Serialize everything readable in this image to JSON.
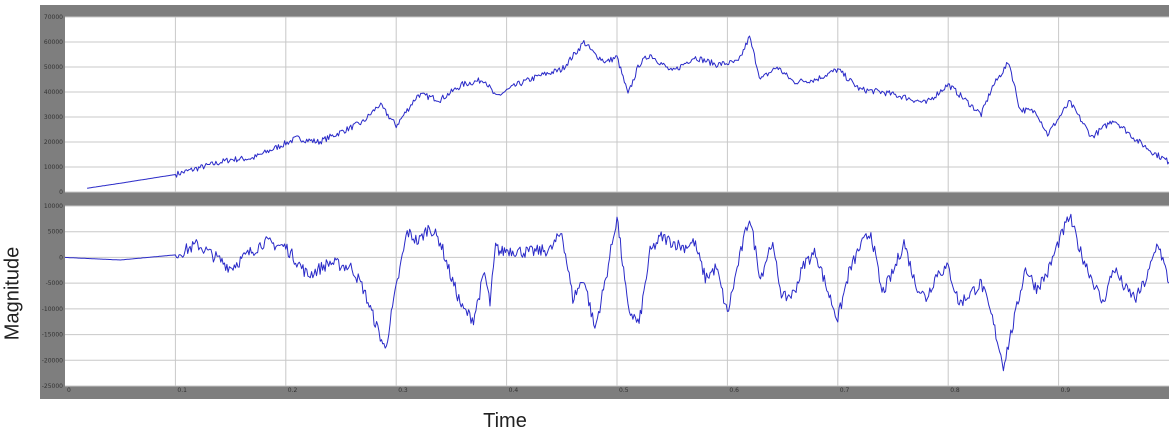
{
  "chart_data": [
    {
      "type": "line",
      "xlabel": "Time",
      "ylabel": "Magnitude",
      "xlim": [
        0,
        1
      ],
      "ylim": [
        0,
        70000
      ],
      "grid": true,
      "y_ticks": [
        "0",
        "10000",
        "20000",
        "30000",
        "40000",
        "50000",
        "60000",
        "70000"
      ],
      "x_ticks": [
        "0",
        "0.1",
        "0.2",
        "0.3",
        "0.4",
        "0.5",
        "0.6",
        "0.7",
        "0.8",
        "0.9"
      ],
      "series": [
        {
          "color": "#2a2ac8",
          "x": [
            0.02,
            0.05,
            0.1,
            0.12,
            0.15,
            0.17,
            0.19,
            0.21,
            0.23,
            0.25,
            0.27,
            0.285,
            0.3,
            0.32,
            0.34,
            0.36,
            0.38,
            0.39,
            0.41,
            0.43,
            0.45,
            0.465,
            0.47,
            0.48,
            0.49,
            0.5,
            0.51,
            0.52,
            0.53,
            0.55,
            0.57,
            0.59,
            0.61,
            0.62,
            0.63,
            0.645,
            0.66,
            0.68,
            0.7,
            0.72,
            0.74,
            0.76,
            0.78,
            0.8,
            0.81,
            0.83,
            0.84,
            0.855,
            0.865,
            0.88,
            0.89,
            0.91,
            0.93,
            0.95,
            0.97,
            0.985,
            1.0
          ],
          "y": [
            1500,
            3500,
            7000,
            9500,
            13000,
            13500,
            17500,
            21500,
            20000,
            24000,
            28000,
            35000,
            26500,
            39000,
            37000,
            43000,
            45000,
            38000,
            43000,
            46500,
            49000,
            57000,
            60000,
            55000,
            52000,
            54000,
            39000,
            51000,
            55000,
            48000,
            54000,
            51000,
            52000,
            62000,
            45000,
            50000,
            44000,
            45000,
            49000,
            41000,
            40000,
            38000,
            35500,
            43000,
            39000,
            31000,
            42000,
            52000,
            33000,
            32000,
            23000,
            36000,
            22000,
            29000,
            21000,
            16000,
            12000
          ]
        }
      ]
    },
    {
      "type": "line",
      "xlabel": "Time",
      "ylabel": "Magnitude",
      "xlim": [
        0,
        1
      ],
      "ylim": [
        -25000,
        10000
      ],
      "grid": true,
      "y_ticks": [
        "10000",
        "5000",
        "0",
        "-5000",
        "-10000",
        "-15000",
        "-20000",
        "-25000"
      ],
      "x_ticks": [
        "0",
        "0.1",
        "0.2",
        "0.3",
        "0.4",
        "0.5",
        "0.6",
        "0.7",
        "0.8",
        "0.9"
      ],
      "series": [
        {
          "color": "#2a2ac8",
          "x": [
            0.0,
            0.05,
            0.1,
            0.12,
            0.14,
            0.15,
            0.18,
            0.2,
            0.22,
            0.24,
            0.26,
            0.27,
            0.28,
            0.29,
            0.3,
            0.31,
            0.32,
            0.33,
            0.34,
            0.35,
            0.36,
            0.37,
            0.38,
            0.385,
            0.39,
            0.395,
            0.4,
            0.42,
            0.44,
            0.45,
            0.46,
            0.47,
            0.48,
            0.49,
            0.5,
            0.505,
            0.51,
            0.52,
            0.53,
            0.54,
            0.55,
            0.56,
            0.57,
            0.58,
            0.59,
            0.6,
            0.61,
            0.62,
            0.63,
            0.64,
            0.65,
            0.66,
            0.67,
            0.68,
            0.69,
            0.7,
            0.71,
            0.72,
            0.73,
            0.74,
            0.75,
            0.76,
            0.77,
            0.78,
            0.79,
            0.8,
            0.81,
            0.82,
            0.83,
            0.84,
            0.85,
            0.86,
            0.87,
            0.88,
            0.89,
            0.9,
            0.91,
            0.92,
            0.93,
            0.94,
            0.95,
            0.96,
            0.97,
            0.98,
            0.99,
            1.0
          ],
          "y": [
            0,
            -500,
            500,
            2500,
            -500,
            -2000,
            3000,
            2000,
            -3500,
            -1000,
            -2000,
            -6000,
            -12000,
            -18000,
            -6000,
            5000,
            3000,
            6000,
            3000,
            -4000,
            -10000,
            -12000,
            -3000,
            -9000,
            2000,
            1000,
            1500,
            1000,
            1500,
            5000,
            -8000,
            -4000,
            -14000,
            -4000,
            8000,
            -1000,
            -10000,
            -13000,
            1000,
            4000,
            3000,
            2000,
            3000,
            -4000,
            -2000,
            -11000,
            -1000,
            8000,
            -4000,
            3000,
            -8000,
            -7000,
            -1000,
            1000,
            -6000,
            -12000,
            -3000,
            2000,
            5000,
            -7000,
            -3000,
            3000,
            -5000,
            -8000,
            -3000,
            -2000,
            -9000,
            -7000,
            -5000,
            -12000,
            -21000,
            -12000,
            -2000,
            -6000,
            -3000,
            3000,
            8000,
            1000,
            -4000,
            -9000,
            -2000,
            -6000,
            -8000,
            -4000,
            3000,
            -5000
          ]
        }
      ]
    }
  ],
  "labels": {
    "xlabel": "Time",
    "ylabel": "Magnitude"
  },
  "colors": {
    "frame": "#7e7e7e",
    "plot_bg": "#ffffff",
    "grid": "#c8c8c8",
    "line": "#2a2ac8"
  }
}
